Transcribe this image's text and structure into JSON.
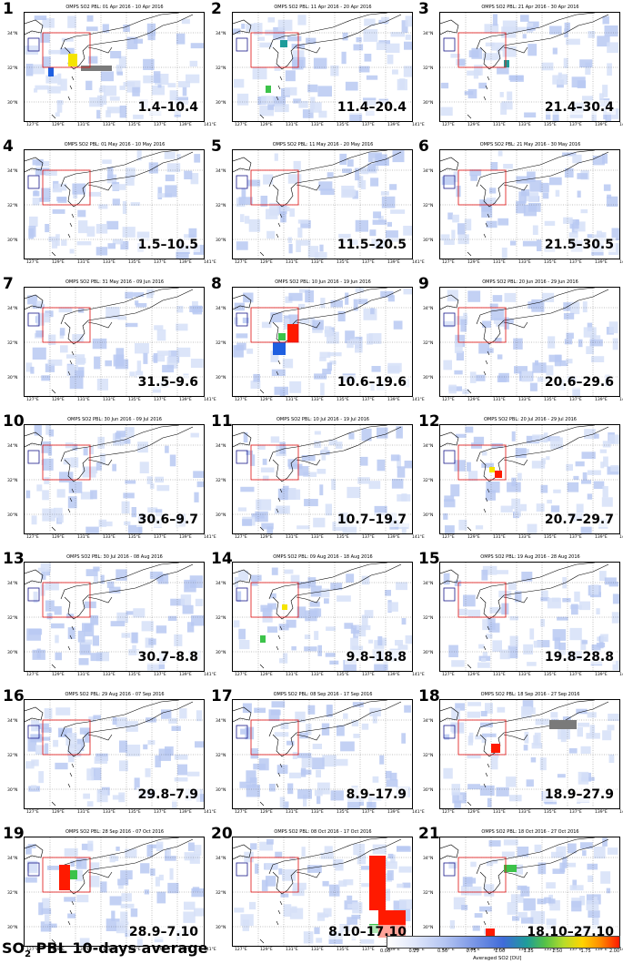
{
  "figure": {
    "title_main": "SO",
    "title_sub": "2",
    "title_rest": " PBL 10-days average",
    "colorbar": {
      "label": "Averaged SO2 [DU]",
      "ticks": [
        "0.00",
        "0.25",
        "0.50",
        "0.75",
        "1.00",
        "1.25",
        "1.50",
        "1.75",
        "2.00"
      ]
    },
    "lat_labels": [
      "34°N",
      "32°N",
      "30°N"
    ],
    "lon_labels": [
      "127°E",
      "129°E",
      "131°E",
      "133°E",
      "135°E",
      "137°E",
      "139°E",
      "141°E"
    ]
  },
  "panels": [
    {
      "num": "1",
      "title": "OMPS SO2 PBL:  01 Apr 2016 - 10 Apr 2016",
      "range": "1.4–10.4"
    },
    {
      "num": "2",
      "title": "OMPS SO2 PBL:  11 Apr 2016 - 20 Apr 2016",
      "range": "11.4–20.4"
    },
    {
      "num": "3",
      "title": "OMPS SO2 PBL:  21 Apr 2016 - 30 Apr 2016",
      "range": "21.4–30.4"
    },
    {
      "num": "4",
      "title": "OMPS SO2 PBL:  01 May 2016 - 10 May 2016",
      "range": "1.5–10.5"
    },
    {
      "num": "5",
      "title": "OMPS SO2 PBL:  11 May 2016 - 20 May 2016",
      "range": "11.5–20.5"
    },
    {
      "num": "6",
      "title": "OMPS SO2 PBL:  21 May 2016 - 30 May 2016",
      "range": "21.5–30.5"
    },
    {
      "num": "7",
      "title": "OMPS SO2 PBL:  31 May 2016 - 09 Jun 2016",
      "range": "31.5–9.6"
    },
    {
      "num": "8",
      "title": "OMPS SO2 PBL:  10 Jun 2016 - 19 Jun 2016",
      "range": "10.6–19.6"
    },
    {
      "num": "9",
      "title": "OMPS SO2 PBL:  20 Jun 2016 - 29 Jun 2016",
      "range": "20.6–29.6"
    },
    {
      "num": "10",
      "title": "OMPS SO2 PBL:  30 Jun 2016 - 09 Jul 2016",
      "range": "30.6–9.7"
    },
    {
      "num": "11",
      "title": "OMPS SO2 PBL:  10 Jul 2016 - 19 Jul 2016",
      "range": "10.7–19.7"
    },
    {
      "num": "12",
      "title": "OMPS SO2 PBL:  20 Jul 2016 - 29 Jul 2016",
      "range": "20.7–29.7"
    },
    {
      "num": "13",
      "title": "OMPS SO2 PBL:  30 Jul 2016 - 08 Aug 2016",
      "range": "30.7–8.8"
    },
    {
      "num": "14",
      "title": "OMPS SO2 PBL:  09 Aug 2016 - 18 Aug 2016",
      "range": "9.8–18.8"
    },
    {
      "num": "15",
      "title": "OMPS SO2 PBL:  19 Aug 2016 - 28 Aug 2016",
      "range": "19.8–28.8"
    },
    {
      "num": "16",
      "title": "OMPS SO2 PBL:  29 Aug 2016 - 07 Sep 2016",
      "range": "29.8–7.9"
    },
    {
      "num": "17",
      "title": "OMPS SO2 PBL:  08 Sep 2016 - 17 Sep 2016",
      "range": "8.9–17.9"
    },
    {
      "num": "18",
      "title": "OMPS SO2 PBL:  18 Sep 2016 - 27 Sep 2016",
      "range": "18.9–27.9"
    },
    {
      "num": "19",
      "title": "OMPS SO2 PBL:  28 Sep 2016 - 07 Oct 2016",
      "range": "28.9–7.10"
    },
    {
      "num": "20",
      "title": "OMPS SO2 PBL:  08 Oct 2016 - 17 Oct 2016",
      "range": "8.10–17.10"
    },
    {
      "num": "21",
      "title": "OMPS SO2 PBL:  18 Oct 2016 - 27 Oct 2016",
      "range": "18.10–27.10"
    }
  ]
}
